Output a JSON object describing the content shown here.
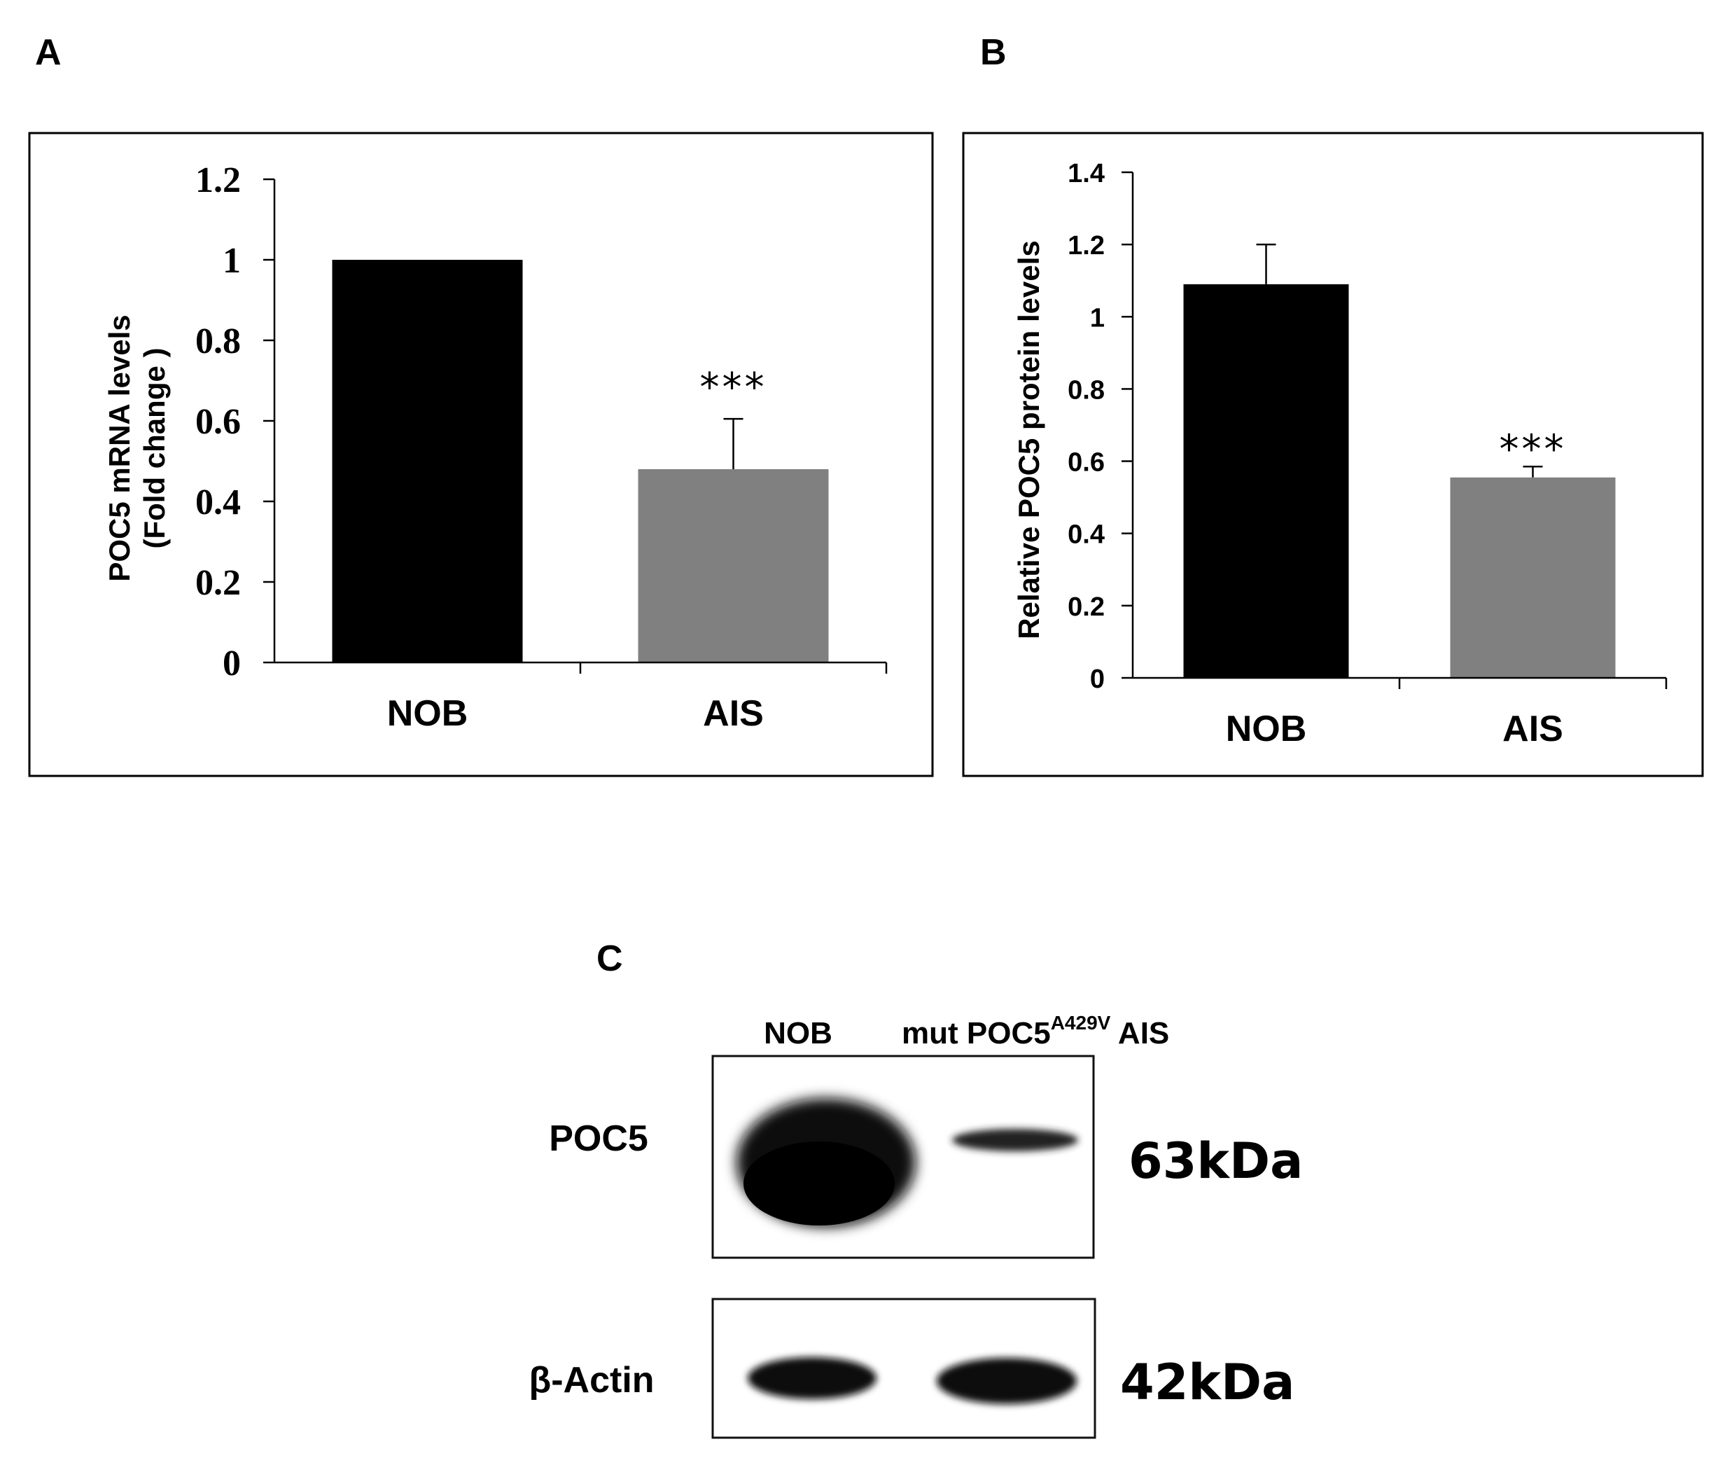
{
  "chart_data": [
    {
      "panel": "A",
      "type": "bar",
      "categories": [
        "NOB",
        "AIS"
      ],
      "values": [
        1.0,
        0.48
      ],
      "error": [
        0.0,
        0.125
      ],
      "significance": [
        "",
        "***"
      ],
      "ylabel_line1": "POC5 mRNA levels",
      "ylabel_line2": "(Fold change )",
      "xlabel": "",
      "ylim": [
        0,
        1.2
      ],
      "yticks": [
        "0",
        "0.2",
        "0.4",
        "0.6",
        "0.8",
        "1",
        "1.2"
      ],
      "colors": [
        "#000000",
        "#808080"
      ]
    },
    {
      "panel": "B",
      "type": "bar",
      "categories": [
        "NOB",
        "AIS"
      ],
      "values": [
        1.09,
        0.555
      ],
      "error": [
        0.11,
        0.03
      ],
      "significance": [
        "",
        "***"
      ],
      "ylabel": "Relative POC5 protein levels",
      "xlabel": "",
      "ylim": [
        0,
        1.4
      ],
      "yticks": [
        "0",
        "0.2",
        "0.4",
        "0.6",
        "0.8",
        "1",
        "1.2",
        "1.4"
      ],
      "colors": [
        "#000000",
        "#808080"
      ]
    }
  ],
  "blot": {
    "panel": "C",
    "lane1": "NOB",
    "lane2_prefix": "mut POC5",
    "lane2_sup": "A429V",
    "lane2_suffix": " AIS",
    "rows": [
      {
        "label": "POC5",
        "size": "63kDa"
      },
      {
        "label": "β-Actin",
        "size": "42kDa"
      }
    ]
  }
}
